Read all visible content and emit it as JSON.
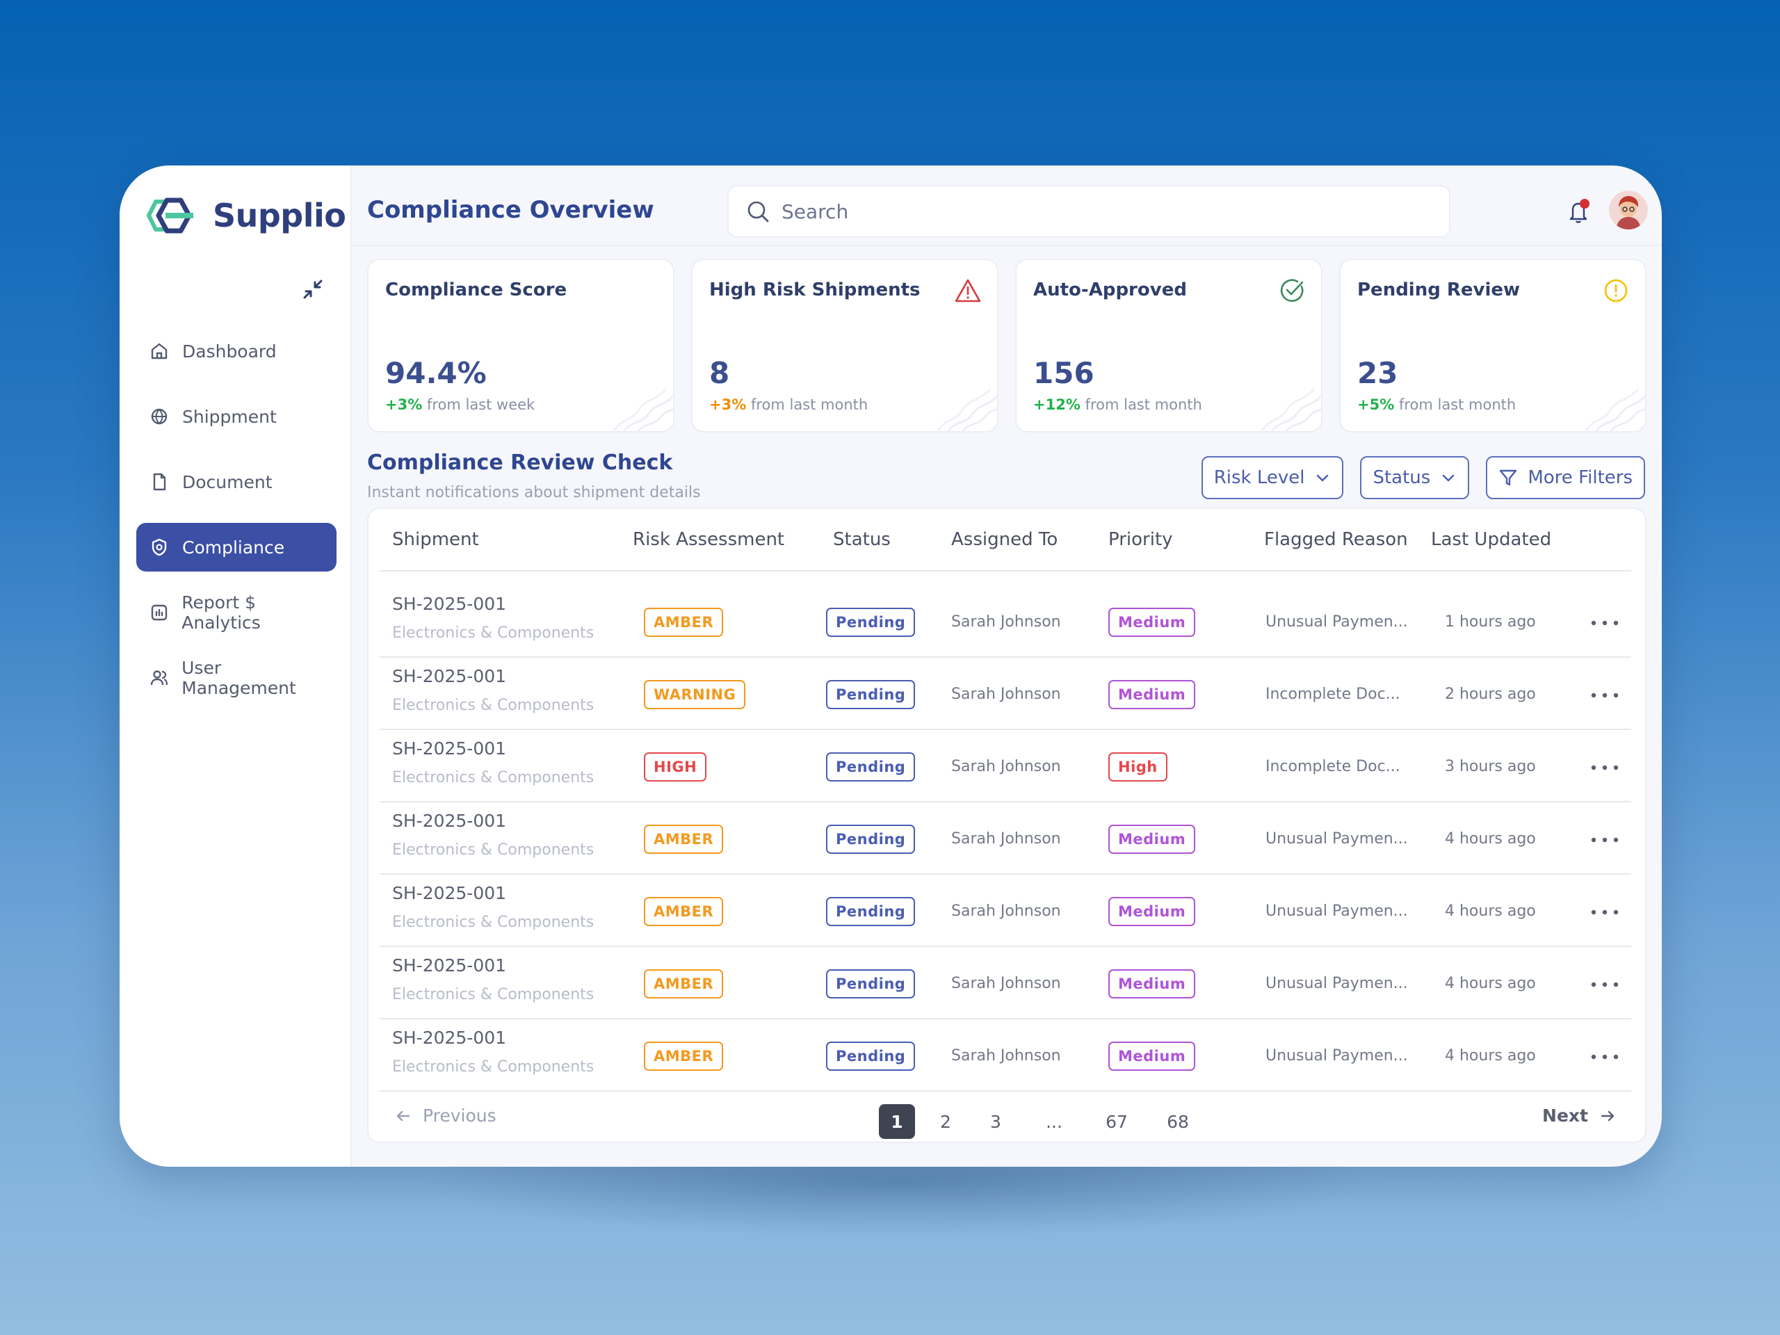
{
  "brand": {
    "name": "Supplio",
    "accent": "#3b4fa5"
  },
  "sidebar": {
    "items": [
      {
        "label": "Dashboard",
        "icon": "home-icon",
        "active": false
      },
      {
        "label": "Shippment",
        "icon": "globe-icon",
        "active": false
      },
      {
        "label": "Document",
        "icon": "document-icon",
        "active": false
      },
      {
        "label": "Compliance",
        "icon": "shield-lock-icon",
        "active": true
      },
      {
        "label": "Report $ Analytics",
        "icon": "chart-icon",
        "active": false
      },
      {
        "label": "User Management",
        "icon": "users-icon",
        "active": false
      }
    ]
  },
  "header": {
    "title": "Compliance Overview",
    "search_placeholder": "Search"
  },
  "cards": [
    {
      "title": "Compliance Score",
      "value": "94.4%",
      "delta": "+3%",
      "delta_color": "#22b14c",
      "delta_text": "from last week",
      "icon": ""
    },
    {
      "title": "High Risk Shipments",
      "value": "8",
      "delta": "+3%",
      "delta_color": "#f08c00",
      "delta_text": "from last month",
      "icon": "warning-icon"
    },
    {
      "title": "Auto-Approved",
      "value": "156",
      "delta": "+12%",
      "delta_color": "#22b14c",
      "delta_text": "from last month",
      "icon": "check-circle-icon"
    },
    {
      "title": "Pending Review",
      "value": "23",
      "delta": "+5%",
      "delta_color": "#22b14c",
      "delta_text": "from last month",
      "icon": "clock-icon"
    }
  ],
  "section": {
    "title": "Compliance Review Check",
    "subtitle": "Instant notifications about shipment details"
  },
  "filters": {
    "risk_level": "Risk Level",
    "status": "Status",
    "more": "More Filters"
  },
  "table": {
    "headers": [
      "Shipment",
      "Risk Assessment",
      "Status",
      "Assigned To",
      "Priority",
      "Flagged Reason",
      "Last Updated"
    ],
    "rows": [
      {
        "id": "SH-2025-001",
        "category": "Electronics & Components",
        "risk": "AMBER",
        "status": "Pending",
        "assigned": "Sarah Johnson",
        "priority": "Medium",
        "reason": "Unusual Paymen...",
        "updated": "1 hours ago"
      },
      {
        "id": "SH-2025-001",
        "category": "Electronics & Components",
        "risk": "WARNING",
        "status": "Pending",
        "assigned": "Sarah Johnson",
        "priority": "Medium",
        "reason": "Incomplete Doc...",
        "updated": "2 hours ago"
      },
      {
        "id": "SH-2025-001",
        "category": "Electronics & Components",
        "risk": "HIGH",
        "status": "Pending",
        "assigned": "Sarah Johnson",
        "priority": "High",
        "reason": "Incomplete Doc...",
        "updated": "3 hours ago"
      },
      {
        "id": "SH-2025-001",
        "category": "Electronics & Components",
        "risk": "AMBER",
        "status": "Pending",
        "assigned": "Sarah Johnson",
        "priority": "Medium",
        "reason": "Unusual Paymen...",
        "updated": "4 hours ago"
      },
      {
        "id": "SH-2025-001",
        "category": "Electronics & Components",
        "risk": "AMBER",
        "status": "Pending",
        "assigned": "Sarah Johnson",
        "priority": "Medium",
        "reason": "Unusual Paymen...",
        "updated": "4 hours ago"
      },
      {
        "id": "SH-2025-001",
        "category": "Electronics & Components",
        "risk": "AMBER",
        "status": "Pending",
        "assigned": "Sarah Johnson",
        "priority": "Medium",
        "reason": "Unusual Paymen...",
        "updated": "4 hours ago"
      },
      {
        "id": "SH-2025-001",
        "category": "Electronics & Components",
        "risk": "AMBER",
        "status": "Pending",
        "assigned": "Sarah Johnson",
        "priority": "Medium",
        "reason": "Unusual Paymen...",
        "updated": "4 hours ago"
      }
    ]
  },
  "badge_colors": {
    "AMBER": "#f29a1f",
    "WARNING": "#f29a1f",
    "HIGH": "#e5484d",
    "Pending": "#4a5db5",
    "Medium": "#b054d6",
    "High": "#e5484d"
  },
  "pagination": {
    "previous": "Previous",
    "next": "Next",
    "pages": [
      "1",
      "2",
      "3",
      "...",
      "67",
      "68"
    ],
    "current": "1"
  }
}
